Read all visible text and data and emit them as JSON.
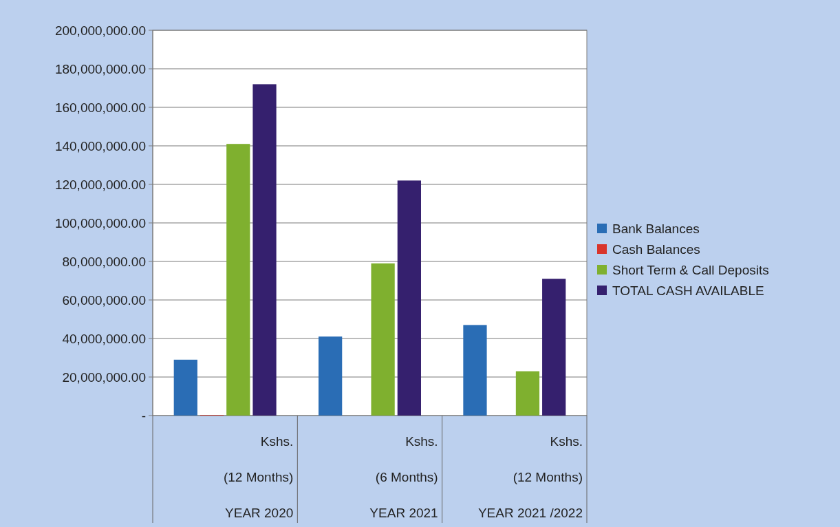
{
  "chart_data": {
    "type": "bar",
    "categories": [
      "Kshs.\n(12 Months)\nYEAR 2020",
      "Kshs.\n(6 Months)\nYEAR 2021",
      "Kshs.\n(12 Months)\nYEAR 2021 /2022"
    ],
    "series": [
      {
        "name": "Bank Balances",
        "color": "#2a6db5",
        "values": [
          29000000,
          41000000,
          47000000
        ]
      },
      {
        "name": "Cash Balances",
        "color": "#d9342b",
        "values": [
          300000,
          0,
          0
        ]
      },
      {
        "name": "Short Term & Call Deposits",
        "color": "#7fb02f",
        "values": [
          141000000,
          79000000,
          23000000
        ]
      },
      {
        "name": "TOTAL CASH AVAILABLE",
        "color": "#35206e",
        "values": [
          172000000,
          122000000,
          71000000
        ]
      }
    ],
    "ylim": [
      0,
      200000000
    ],
    "yticks": [
      {
        "value": 0,
        "label": "-"
      },
      {
        "value": 20000000,
        "label": "20,000,000.00"
      },
      {
        "value": 40000000,
        "label": "40,000,000.00"
      },
      {
        "value": 60000000,
        "label": "60,000,000.00"
      },
      {
        "value": 80000000,
        "label": "80,000,000.00"
      },
      {
        "value": 100000000,
        "label": "100,000,000.00"
      },
      {
        "value": 120000000,
        "label": "120,000,000.00"
      },
      {
        "value": 140000000,
        "label": "140,000,000.00"
      },
      {
        "value": 160000000,
        "label": "160,000,000.00"
      },
      {
        "value": 180000000,
        "label": "180,000,000.00"
      },
      {
        "value": 200000000,
        "label": "200,000,000.00"
      }
    ],
    "grid": "y",
    "legend": "right"
  }
}
